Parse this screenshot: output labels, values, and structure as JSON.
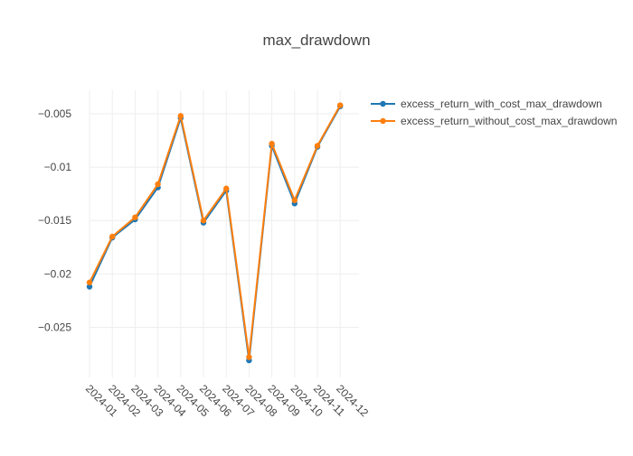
{
  "chart_data": {
    "type": "line",
    "title": "max_drawdown",
    "xlabel": "",
    "ylabel": "",
    "categories": [
      "2024-01",
      "2024-02",
      "2024-03",
      "2024-04",
      "2024-05",
      "2024-06",
      "2024-07",
      "2024-08",
      "2024-09",
      "2024-10",
      "2024-11",
      "2024-12"
    ],
    "y_ticks": [
      -0.005,
      -0.01,
      -0.015,
      -0.02,
      -0.025
    ],
    "y_tick_labels": [
      "−0.005",
      "−0.01",
      "−0.015",
      "−0.02",
      "−0.025"
    ],
    "ylim": [
      -0.0297,
      -0.0028
    ],
    "grid": true,
    "legend_position": "top-right",
    "series": [
      {
        "name": "excess_return_with_cost_max_drawdown",
        "color": "#1f77b4",
        "values": [
          -0.0212,
          -0.0166,
          -0.0149,
          -0.0119,
          -0.0054,
          -0.0152,
          -0.0122,
          -0.0281,
          -0.008,
          -0.0134,
          -0.0081,
          -0.0043
        ]
      },
      {
        "name": "excess_return_without_cost_max_drawdown",
        "color": "#ff7f0e",
        "values": [
          -0.0208,
          -0.0165,
          -0.0147,
          -0.0116,
          -0.0052,
          -0.015,
          -0.012,
          -0.0278,
          -0.0078,
          -0.0131,
          -0.008,
          -0.0042
        ]
      }
    ]
  }
}
